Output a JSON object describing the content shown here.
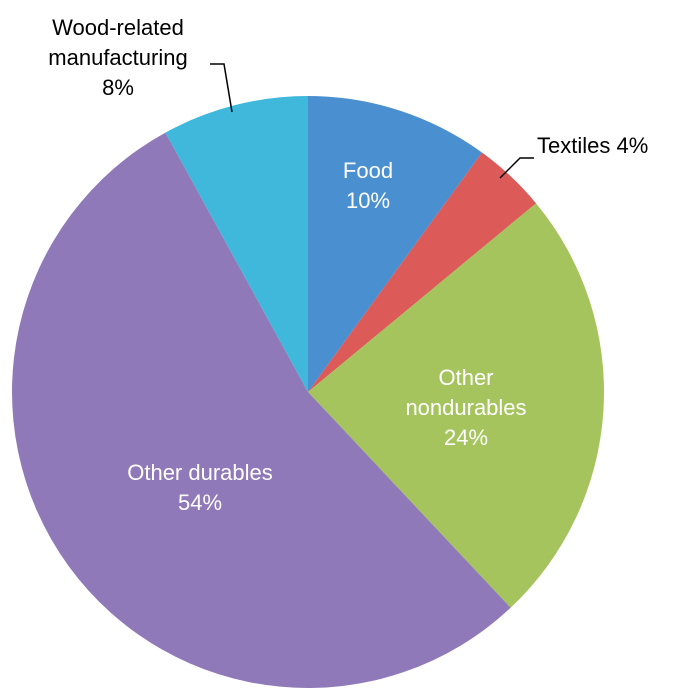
{
  "chart_data": {
    "type": "pie",
    "categories": [
      "Food",
      "Textiles",
      "Other nondurables",
      "Other durables",
      "Wood-related manufacturing"
    ],
    "values": [
      10,
      4,
      24,
      54,
      8
    ],
    "value_labels": [
      "10%",
      "4%",
      "24%",
      "54%",
      "8%"
    ],
    "colors": [
      "#4a8fd0",
      "#dc5a57",
      "#a5c45e",
      "#9079b8",
      "#3fb8dc"
    ]
  }
}
